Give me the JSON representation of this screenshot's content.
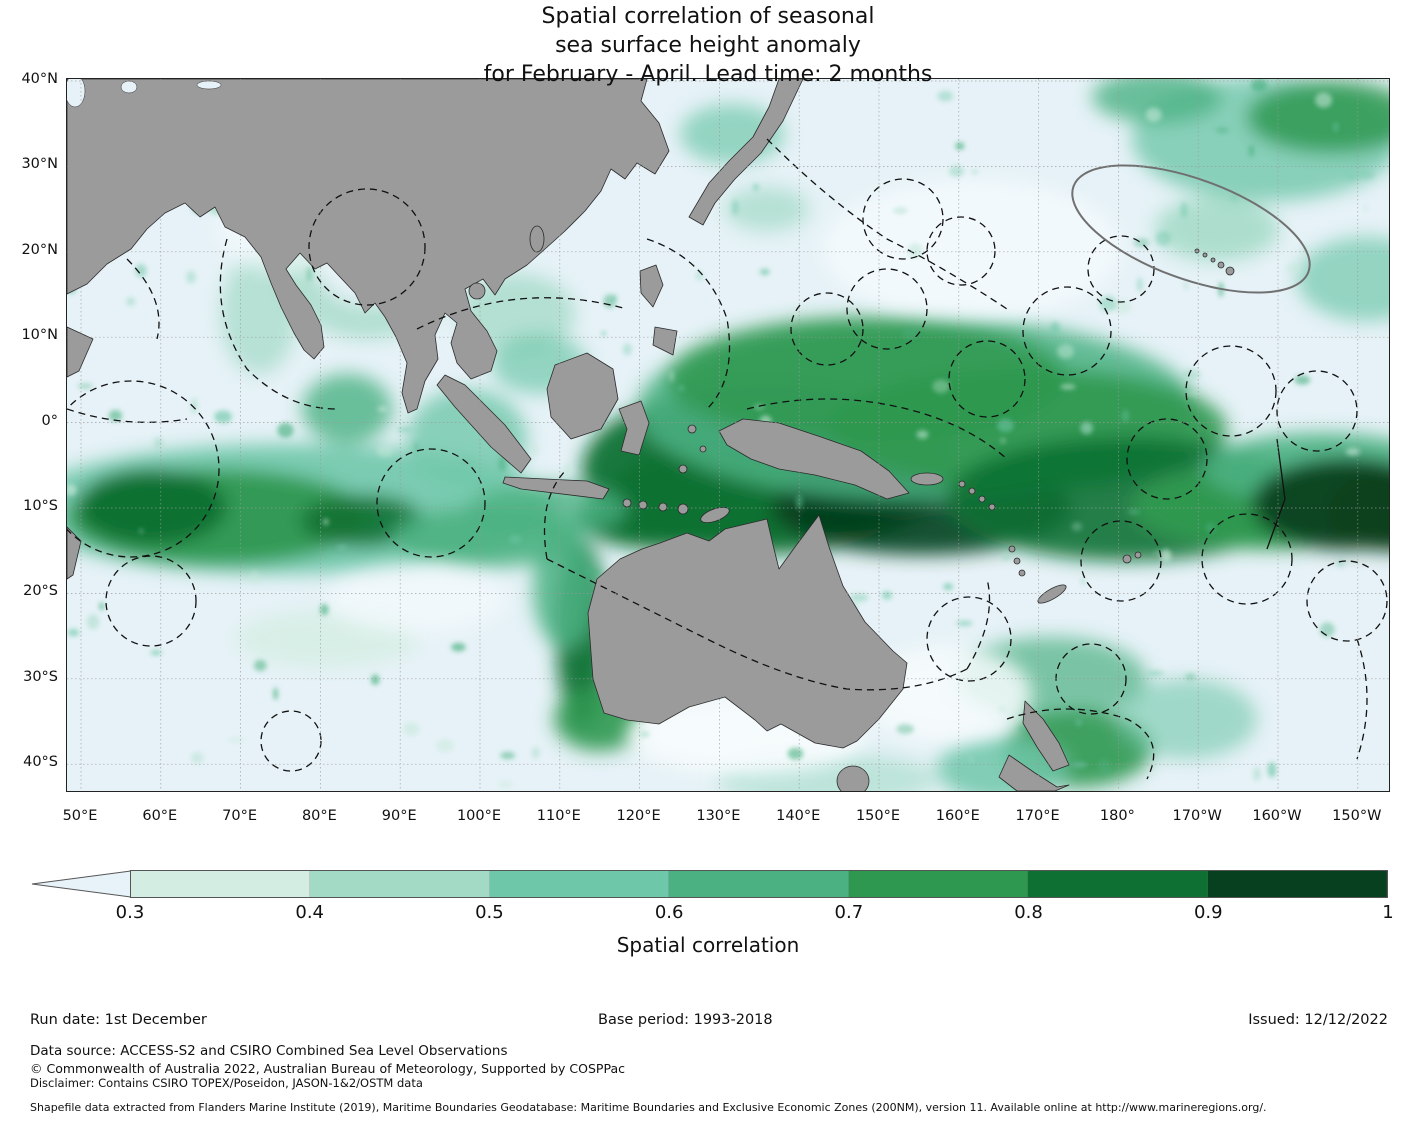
{
  "title": {
    "line1": "Spatial correlation of seasonal",
    "line2": "sea surface height anomaly",
    "line3": "for February - April. Lead time: 2 months"
  },
  "chart_data": {
    "type": "heatmap",
    "title": "Spatial correlation of seasonal sea surface height anomaly for February - April. Lead time: 2 months",
    "projection": "lat/lon map of Indo-Pacific",
    "x_tick_labels": [
      "50°E",
      "60°E",
      "70°E",
      "80°E",
      "90°E",
      "100°E",
      "110°E",
      "120°E",
      "130°E",
      "140°E",
      "150°E",
      "160°E",
      "170°E",
      "180°",
      "170°W",
      "160°W",
      "150°W"
    ],
    "y_tick_labels": [
      "40°N",
      "30°N",
      "20°N",
      "10°N",
      "0°",
      "10°S",
      "20°S",
      "30°S",
      "40°S"
    ],
    "lon_range_deg_east": [
      48,
      212
    ],
    "lat_range_deg_north": [
      -43.5,
      40.5
    ],
    "grid": true,
    "colorbar": {
      "label": "Spatial correlation",
      "levels": [
        0.3,
        0.4,
        0.5,
        0.6,
        0.7,
        0.8,
        0.9,
        1
      ],
      "tick_labels": [
        "0.3",
        "0.4",
        "0.5",
        "0.6",
        "0.7",
        "0.8",
        "0.9",
        "1"
      ],
      "colors": [
        "#d4ede2",
        "#a2dac6",
        "#6fc7a9",
        "#4bb182",
        "#2f9850",
        "#0e7133",
        "#07401f"
      ],
      "under_arrow_color": "#e7f2f9",
      "extend": "min",
      "orientation": "horizontal"
    },
    "regions": [
      {
        "area": "Maritime Continent / equatorial western Pacific (120°E-165°E, 10°N-10°S)",
        "correlation": "0.9-1.0"
      },
      {
        "area": "Western Pacific warm pool band (130°E-180°, 0°-15°N)",
        "correlation": "0.7-0.9"
      },
      {
        "area": "Equatorial band at eastern map edge (175°W-150°W, 0°-10°S)",
        "correlation": "0.9-1.0"
      },
      {
        "area": "Tropical Indian Ocean band (50°E-100°E, 5°S-15°S)",
        "correlation": "0.7-0.9"
      },
      {
        "area": "Bay of Bengal coastal rim",
        "correlation": "0.5-0.8"
      },
      {
        "area": "Western Australia coastal strip and North West Shelf",
        "correlation": "0.8-0.9"
      },
      {
        "area": "Waters around northern New Zealand",
        "correlation": "0.7-0.9"
      },
      {
        "area": "Northeast Pacific near Hawaii",
        "correlation": "0.4-0.8 patchy"
      },
      {
        "area": "Central North Pacific (150°E-170°W, 20°N-35°N)",
        "correlation": "<0.4"
      },
      {
        "area": "Southern Indian Ocean and Great Australian Bight",
        "correlation": "<0.4"
      },
      {
        "area": "Tasman Sea and south of Australia",
        "correlation": "0.3-0.5"
      }
    ],
    "map_legend": {
      "land_color": "#9b9b9b",
      "ocean_base_color": "#e6f2f7",
      "dashed_lines": "Exclusive Economic Zone (EEZ) maritime boundaries",
      "solid_grey_outline": "EEZ outline around Hawaiian Islands"
    }
  },
  "footer": {
    "run_date": "Run date: 1st December",
    "base_period": "Base period: 1993-2018",
    "issued": "Issued: 12/12/2022",
    "data_source": "Data source: ACCESS-S2 and CSIRO Combined Sea Level Observations",
    "copyright": "© Commonwealth of Australia 2022, Australian Bureau of Meteorology, Supported by COSPPac",
    "disclaimer": "Disclaimer: Contains CSIRO TOPEX/Poseidon, JASON-1&2/OSTM data",
    "shapefile_note": "Shapefile data extracted from Flanders Marine Institute (2019), Maritime Boundaries Geodatabase: Maritime Boundaries and Exclusive Economic Zones (200NM), version 11. Available online at http://www.marineregions.org/."
  }
}
